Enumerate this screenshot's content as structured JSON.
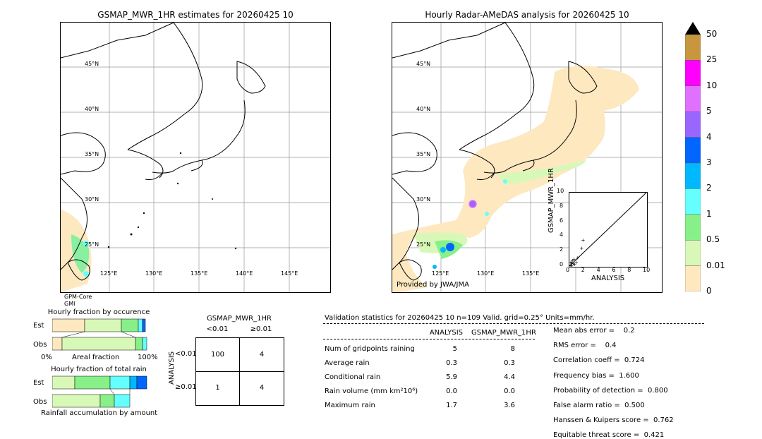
{
  "left_map": {
    "title": "GSMAP_MWR_1HR estimates for 20260425 10",
    "footer_line1": "GPM-Core",
    "footer_line2": "GMI",
    "lat_labels": [
      "45°N",
      "40°N",
      "35°N",
      "30°N",
      "25°N"
    ],
    "lon_labels": [
      "125°E",
      "130°E",
      "135°E",
      "140°E",
      "145°E"
    ]
  },
  "right_map": {
    "title": "Hourly Radar-AMeDAS analysis for 20260425 10",
    "credit": "Provided by JWA/JMA",
    "lat_labels": [
      "45°N",
      "40°N",
      "35°N",
      "30°N",
      "25°N"
    ],
    "lon_labels": [
      "125°E",
      "130°E",
      "135°E"
    ]
  },
  "scatter": {
    "ylabel": "GSMAP_MWR_1HR",
    "xlabel": "ANALYSIS",
    "ticks": [
      "0",
      "2",
      "4",
      "6",
      "8",
      "10"
    ],
    "points": [
      [
        0.1,
        0.2
      ],
      [
        0.2,
        0.5
      ],
      [
        0.3,
        0.8
      ],
      [
        0.5,
        1.0
      ],
      [
        0.6,
        0.3
      ],
      [
        0.8,
        0.6
      ],
      [
        1.0,
        1.2
      ],
      [
        0.2,
        0.1
      ],
      [
        1.5,
        2.5
      ],
      [
        1.7,
        3.6
      ],
      [
        0.4,
        0.4
      ],
      [
        0.1,
        0.6
      ]
    ]
  },
  "colorbar": {
    "labels": [
      "50",
      "25",
      "10",
      "5",
      "4",
      "3",
      "2",
      "1",
      "0.5",
      "0.01",
      "0"
    ],
    "colors": [
      "#c8963c",
      "#ff00ff",
      "#e070ff",
      "#9966ff",
      "#0066ff",
      "#00b8ff",
      "#66ffff",
      "#88f088",
      "#d8f8b8",
      "#fde8c0"
    ]
  },
  "occurrence_chart": {
    "title": "Hourly fraction by occurence",
    "row_labels": [
      "Est",
      "Obs"
    ],
    "axis_left": "0%",
    "axis_mid": "Areal fraction",
    "axis_right": "100%"
  },
  "total_rain_chart": {
    "title": "Hourly fraction of total rain",
    "row_labels": [
      "Est",
      "Obs"
    ],
    "footer": "Rainfall accumulation by amount"
  },
  "contingency": {
    "title": "GSMAP_MWR_1HR",
    "col_labels": [
      "<0.01",
      "≥0.01"
    ],
    "row_axis": "ANALYSIS",
    "row_labels": [
      "<0.01",
      "≥0.01"
    ],
    "cells": [
      "100",
      "4",
      "1",
      "4"
    ]
  },
  "validation": {
    "header": "Validation statistics for 20260425 10  n=109 Valid. grid=0.25° Units=mm/hr.",
    "col_analysis": "ANALYSIS",
    "col_gsmap": "GSMAP_MWR_1HR",
    "rows": [
      {
        "label": "Num of gridpoints raining",
        "a": "5",
        "g": "8"
      },
      {
        "label": "Average rain",
        "a": "0.3",
        "g": "0.3"
      },
      {
        "label": "Conditional rain",
        "a": "5.9",
        "g": "4.4"
      },
      {
        "label": "Rain volume (mm km²10⁶)",
        "a": "0.0",
        "g": "0.0"
      },
      {
        "label": "Maximum rain",
        "a": "1.7",
        "g": "3.6"
      }
    ],
    "scores": [
      "Mean abs error =    0.2",
      "RMS error =    0.4",
      "Correlation coeff =  0.724",
      "Frequency bias =  1.600",
      "Probability of detection =  0.800",
      "False alarm ratio =  0.500",
      "Hanssen & Kuipers score =  0.762",
      "Equitable threat score =  0.421"
    ]
  }
}
